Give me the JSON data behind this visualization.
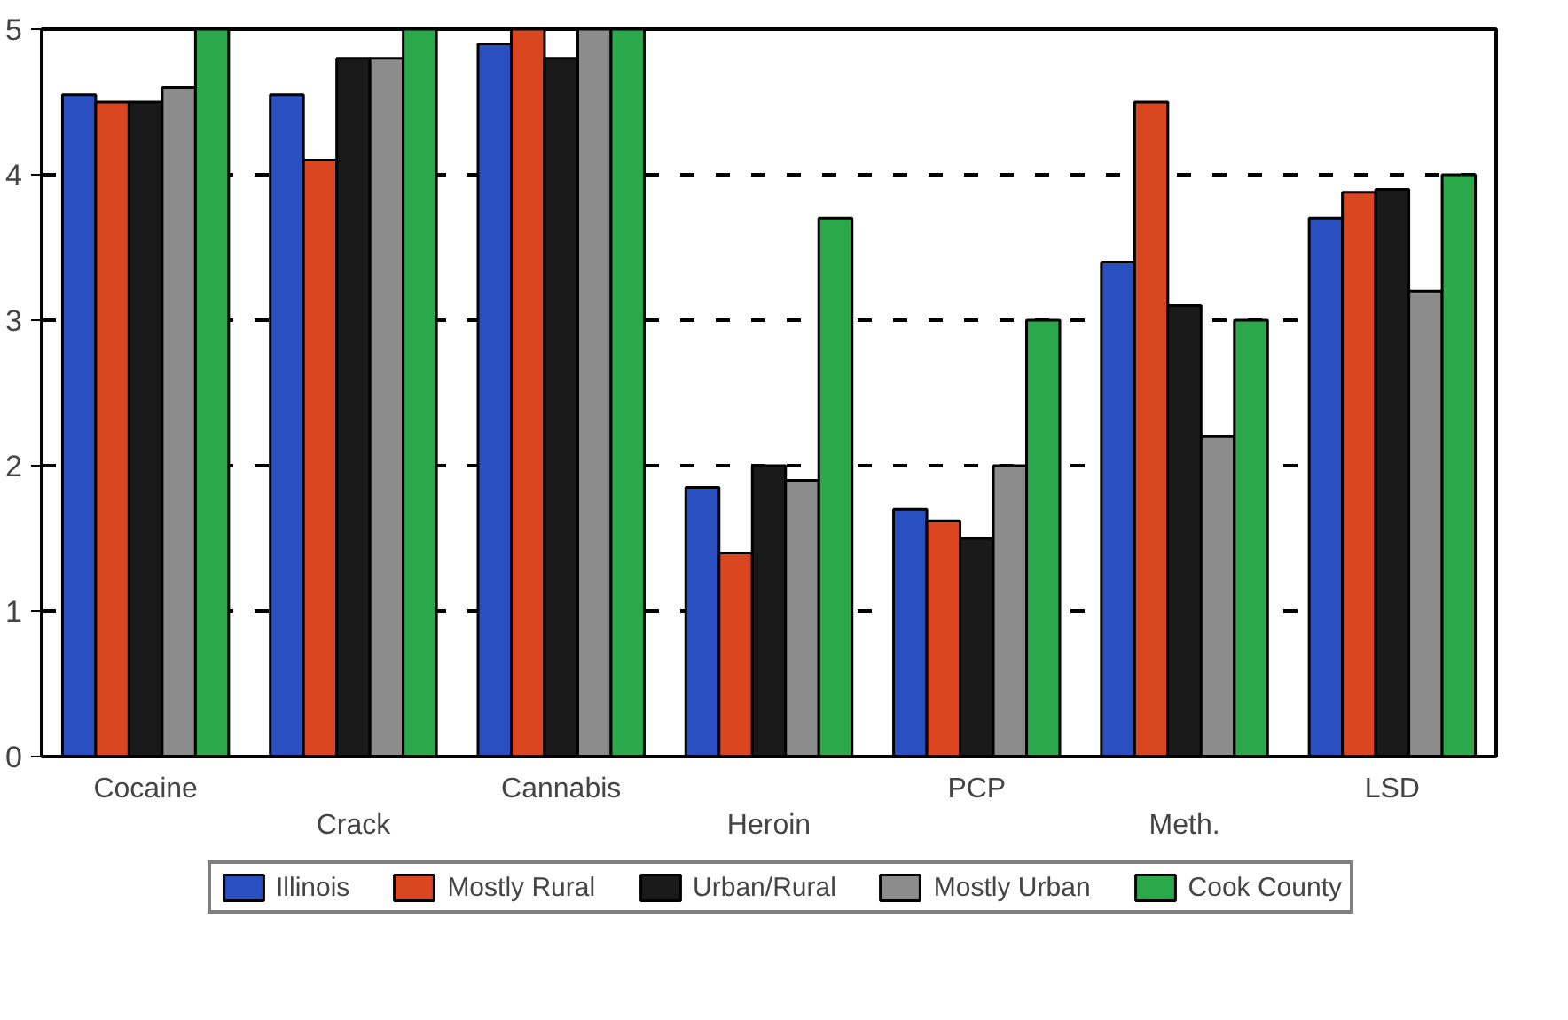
{
  "chart_data": {
    "type": "bar",
    "categories": [
      "Cocaine",
      "Crack",
      "Cannabis",
      "Heroin",
      "PCP",
      "Meth.",
      "LSD"
    ],
    "series": [
      {
        "name": "Illinois",
        "color": "#2a4fc0",
        "values": [
          4.55,
          4.55,
          4.9,
          1.85,
          1.7,
          3.4,
          3.7
        ]
      },
      {
        "name": "Mostly Rural",
        "color": "#d9461f",
        "values": [
          4.5,
          4.1,
          5.0,
          1.4,
          1.62,
          4.5,
          3.88
        ]
      },
      {
        "name": "Urban/Rural",
        "color": "#1a1a1a",
        "values": [
          4.5,
          4.8,
          4.8,
          2.0,
          1.5,
          3.1,
          3.9
        ]
      },
      {
        "name": "Mostly Urban",
        "color": "#8c8c8c",
        "values": [
          4.6,
          4.8,
          5.0,
          1.9,
          2.0,
          2.2,
          3.2
        ]
      },
      {
        "name": "Cook County",
        "color": "#2aa84a",
        "values": [
          5,
          5,
          5,
          3.7,
          3.0,
          3.0,
          4.0
        ]
      }
    ],
    "ylim": [
      0,
      5
    ],
    "yticks": [
      0,
      1,
      2,
      3,
      4,
      5
    ],
    "grid": "y",
    "legend": "bottom"
  }
}
